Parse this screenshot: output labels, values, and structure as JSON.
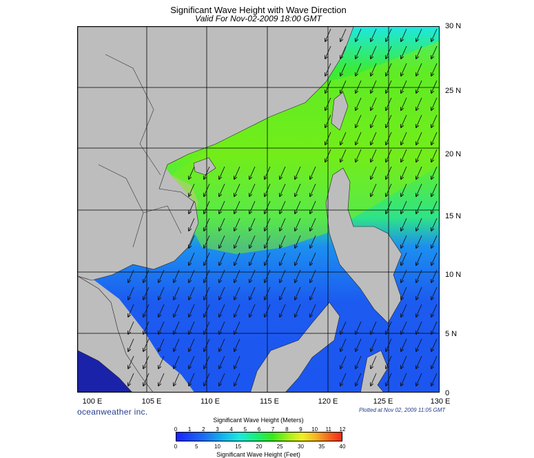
{
  "header": {
    "title": "Significant Wave Height with Wave Direction",
    "subtitle": "Valid For Nov-02-2009 18:00 GMT"
  },
  "map": {
    "lat_labels": [
      "30 N",
      "25 N",
      "20 N",
      "15 N",
      "10 N",
      "5 N",
      "0"
    ],
    "lon_labels": [
      "100 E",
      "105 E",
      "110 E",
      "115 E",
      "120 E",
      "125 E",
      "130 E"
    ],
    "land_color": "#bdbdbd",
    "ocean_palette": [
      "#1a22ff",
      "#1c6bf5",
      "#12b4f0",
      "#1de8e0",
      "#19f07c",
      "#37e81c",
      "#a8f01a"
    ],
    "arrow_direction": "towards southwest"
  },
  "footer": {
    "brand": "oceanweather inc.",
    "plotted": "Plotted at Nov 02, 2009 11:05 GMT"
  },
  "legend": {
    "title_meters": "Significant Wave Height (Meters)",
    "title_feet": "Significant Wave Height (Feet)",
    "meters": [
      "0",
      "1",
      "2",
      "3",
      "4",
      "5",
      "6",
      "7",
      "8",
      "9",
      "10",
      "11",
      "12"
    ],
    "feet": [
      "0",
      "5",
      "10",
      "15",
      "20",
      "25",
      "30",
      "35",
      "40"
    ],
    "colors": [
      "#1a22ff",
      "#1c6bf5",
      "#12b4f0",
      "#1de8e0",
      "#19f07c",
      "#37e81c",
      "#a8f01a",
      "#eef026",
      "#f5b723",
      "#f56a1e",
      "#f02a18"
    ]
  }
}
